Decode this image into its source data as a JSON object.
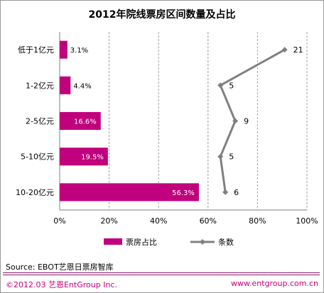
{
  "chart_data": {
    "type": "bar+line",
    "title": "2012年院线票房区间数量及占比",
    "categories": [
      "低于1亿元",
      "1-2亿元",
      "2-5亿元",
      "5-10亿元",
      "10-20亿元"
    ],
    "series": [
      {
        "name": "票房占比",
        "type": "bar",
        "values": [
          3.1,
          4.4,
          16.6,
          19.5,
          56.3
        ],
        "labels": [
          "3.1%",
          "4.4%",
          "16.6%",
          "19.5%",
          "56.3%"
        ],
        "color": "#c0007c"
      },
      {
        "name": "条数",
        "type": "line",
        "values": [
          21,
          5,
          9,
          5,
          6
        ],
        "labels": [
          "21",
          "5",
          "9",
          "5",
          "6"
        ],
        "plot_positions": [
          91,
          65,
          71,
          65,
          67
        ],
        "color": "#808080"
      }
    ],
    "xlim": [
      0,
      100
    ],
    "x_ticks": [
      "0%",
      "20%",
      "40%",
      "60%",
      "80%",
      "100%"
    ],
    "grid": "vertical-dashed",
    "legend": "bottom"
  },
  "footer": {
    "source": "Source: EBOT艺恩日票房智库",
    "copyright": "©2012.03  艺恩EntGroup Inc.",
    "url": "www.entgroup.com.cn"
  }
}
